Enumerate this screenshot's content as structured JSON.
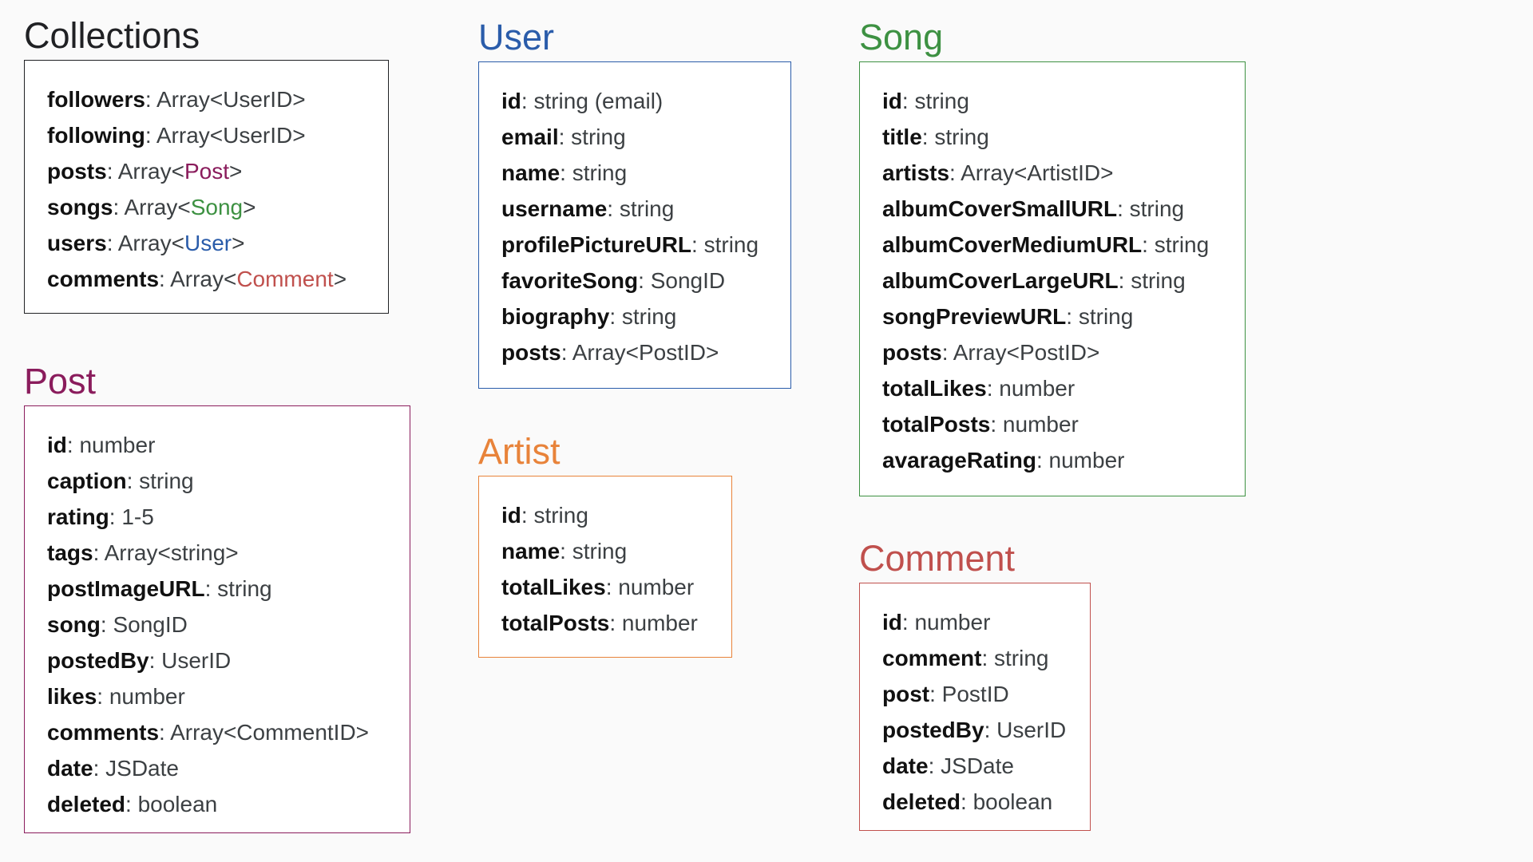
{
  "colors": {
    "collections": "#202124",
    "user": "#2a5caa",
    "song": "#3d9142",
    "post": "#8a1c5c",
    "artist": "#e8833a",
    "comment": "#c0504d",
    "field_name": "#111111",
    "field_type": "#3c4043"
  },
  "entities": {
    "collections": {
      "title": "Collections",
      "fields": [
        {
          "name": "followers",
          "sep": ": ",
          "type_pre": "Array<UserID>",
          "ref": "",
          "type_post": ""
        },
        {
          "name": "following",
          "sep": ": ",
          "type_pre": "Array<UserID>",
          "ref": "",
          "type_post": ""
        },
        {
          "name": "posts",
          "sep": ": ",
          "type_pre": "Array<",
          "ref": "Post",
          "ref_color": "post",
          "type_post": ">"
        },
        {
          "name": "songs",
          "sep": ": ",
          "type_pre": "Array<",
          "ref": "Song",
          "ref_color": "song",
          "type_post": ">"
        },
        {
          "name": "users",
          "sep": ": ",
          "type_pre": "Array<",
          "ref": "User",
          "ref_color": "user",
          "type_post": ">"
        },
        {
          "name": "comments",
          "sep": ": ",
          "type_pre": "Array<",
          "ref": "Comment",
          "ref_color": "comment",
          "type_post": ">"
        }
      ]
    },
    "user": {
      "title": "User",
      "fields": [
        {
          "name": "id",
          "sep": ": ",
          "type_pre": "string (email)"
        },
        {
          "name": "email",
          "sep": ": ",
          "type_pre": "string"
        },
        {
          "name": "name",
          "sep": ": ",
          "type_pre": "string"
        },
        {
          "name": "username",
          "sep": ": ",
          "type_pre": "string"
        },
        {
          "name": "profilePictureURL",
          "sep": ": ",
          "type_pre": "string"
        },
        {
          "name": "favoriteSong",
          "sep": ": ",
          "type_pre": "SongID"
        },
        {
          "name": "biography",
          "sep": ": ",
          "type_pre": "string"
        },
        {
          "name": "posts",
          "sep": ": ",
          "type_pre": "Array<PostID>"
        }
      ]
    },
    "song": {
      "title": "Song",
      "fields": [
        {
          "name": "id",
          "sep": ": ",
          "type_pre": "string"
        },
        {
          "name": "title",
          "sep": ": ",
          "type_pre": "string"
        },
        {
          "name": "artists",
          "sep": ": ",
          "type_pre": "Array<ArtistID>"
        },
        {
          "name": "albumCoverSmallURL",
          "sep": ": ",
          "type_pre": "string"
        },
        {
          "name": "albumCoverMediumURL",
          "sep": ": ",
          "type_pre": "string"
        },
        {
          "name": "albumCoverLargeURL",
          "sep": ": ",
          "type_pre": "string"
        },
        {
          "name": "songPreviewURL",
          "sep": ": ",
          "type_pre": "string"
        },
        {
          "name": "posts",
          "sep": ": ",
          "type_pre": "Array<PostID>"
        },
        {
          "name": "totalLikes",
          "sep": ": ",
          "type_pre": "number"
        },
        {
          "name": "totalPosts",
          "sep": ": ",
          "type_pre": "number"
        },
        {
          "name": "avarageRating",
          "sep": ": ",
          "type_pre": "number"
        }
      ]
    },
    "post": {
      "title": "Post",
      "fields": [
        {
          "name": "id",
          "sep": ": ",
          "type_pre": "number"
        },
        {
          "name": "caption",
          "sep": ": ",
          "type_pre": "string"
        },
        {
          "name": "rating",
          "sep": ": ",
          "type_pre": "1-5"
        },
        {
          "name": "tags",
          "sep": ": ",
          "type_pre": "Array<string>"
        },
        {
          "name": "postImageURL",
          "sep": ": ",
          "type_pre": "string"
        },
        {
          "name": "song",
          "sep": ": ",
          "type_pre": "SongID"
        },
        {
          "name": "postedBy",
          "sep": ": ",
          "type_pre": "UserID"
        },
        {
          "name": "likes",
          "sep": ": ",
          "type_pre": "number"
        },
        {
          "name": "comments",
          "sep": ": ",
          "type_pre": "Array<CommentID>"
        },
        {
          "name": "date",
          "sep": ": ",
          "type_pre": "JSDate"
        },
        {
          "name": "deleted",
          "sep": ": ",
          "type_pre": "boolean"
        }
      ]
    },
    "artist": {
      "title": "Artist",
      "fields": [
        {
          "name": "id",
          "sep": ": ",
          "type_pre": "string"
        },
        {
          "name": "name",
          "sep": ": ",
          "type_pre": "string"
        },
        {
          "name": "totalLikes",
          "sep": ": ",
          "type_pre": "number"
        },
        {
          "name": "totalPosts",
          "sep": ": ",
          "type_pre": "number"
        }
      ]
    },
    "comment": {
      "title": "Comment",
      "fields": [
        {
          "name": "id",
          "sep": ": ",
          "type_pre": "number"
        },
        {
          "name": "comment",
          "sep": ": ",
          "type_pre": "string"
        },
        {
          "name": "post",
          "sep": ": ",
          "type_pre": "PostID"
        },
        {
          "name": "postedBy",
          "sep": ": ",
          "type_pre": "UserID"
        },
        {
          "name": "date",
          "sep": ": ",
          "type_pre": "JSDate"
        },
        {
          "name": "deleted",
          "sep": ": ",
          "type_pre": "boolean"
        }
      ]
    }
  }
}
